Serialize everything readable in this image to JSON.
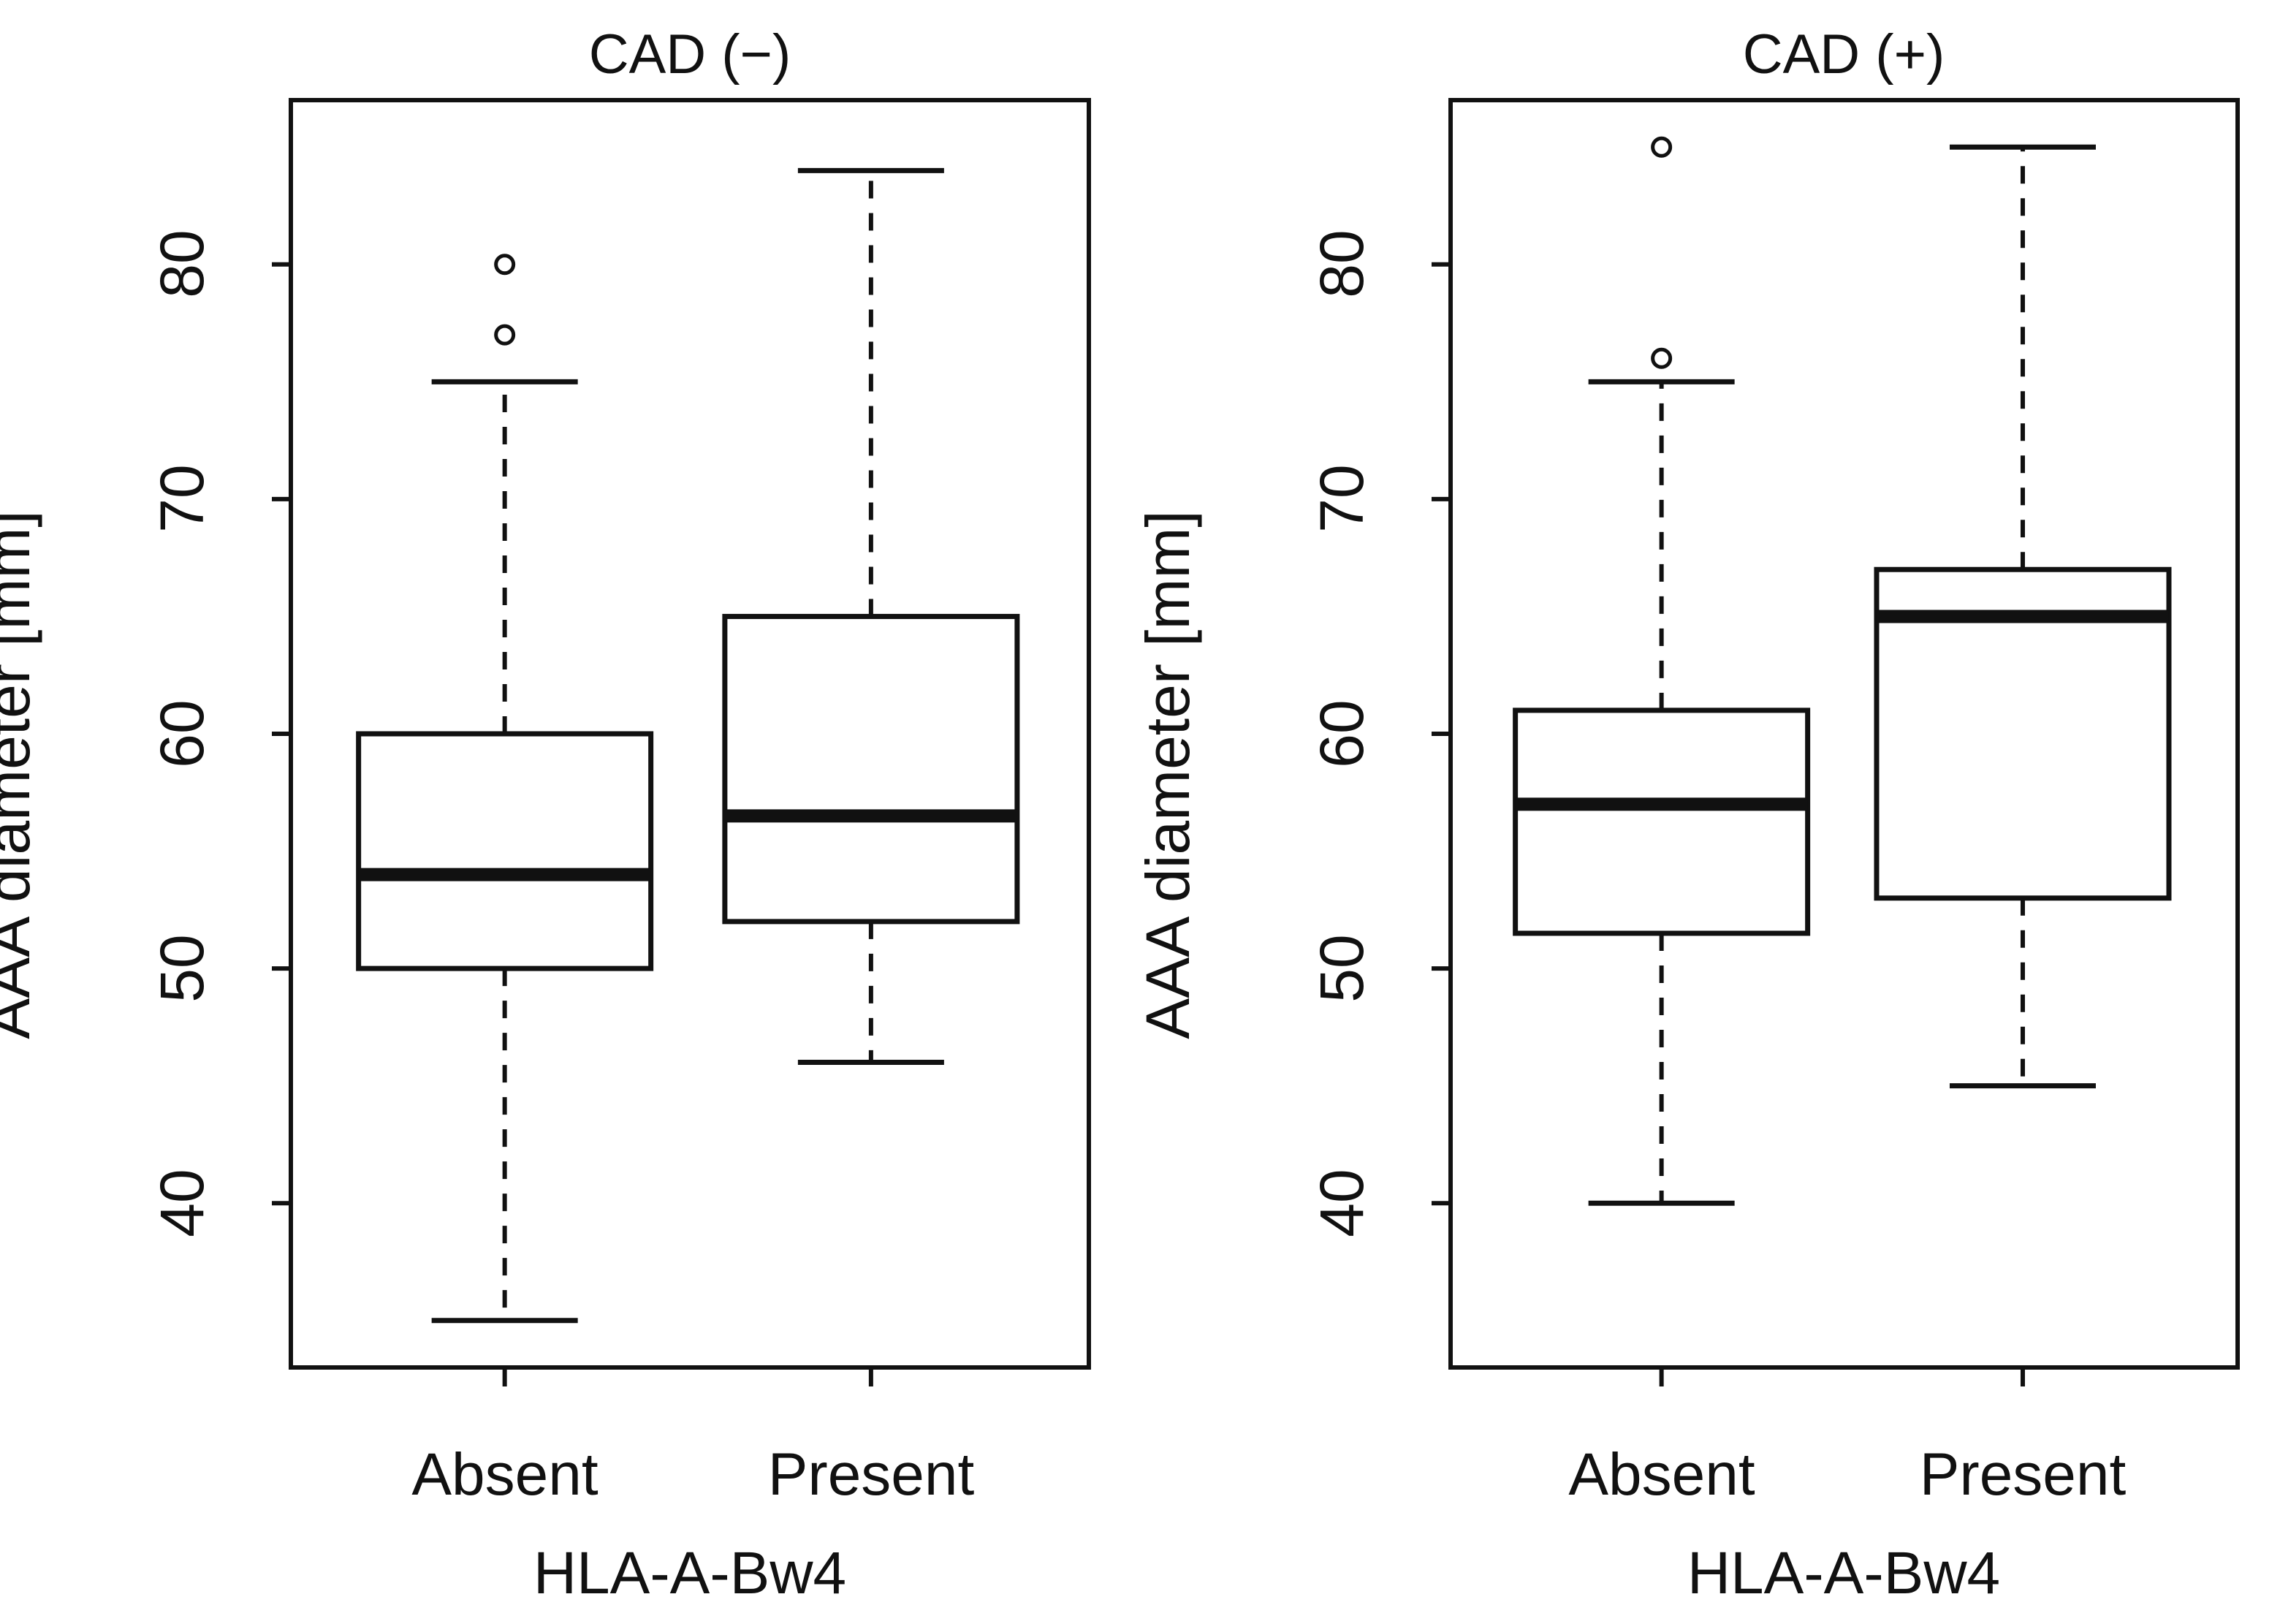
{
  "figure": {
    "description": "Two-panel boxplot figure of AAA diameter by HLA-A-Bw4 status, stratified by CAD status",
    "background_color": "#ffffff",
    "line_color": "#111111"
  },
  "chart_data": [
    {
      "type": "boxplot",
      "title": "CAD (−)",
      "xlabel": "HLA-A-Bw4",
      "ylabel": "AAA diameter [mm]",
      "ylim": [
        33,
        87
      ],
      "yticks": [
        40,
        50,
        60,
        70,
        80
      ],
      "grid": false,
      "legend": null,
      "categories": [
        "Absent",
        "Present"
      ],
      "series": [
        {
          "category": "Absent",
          "whisker_low": 35,
          "q1": 50,
          "median": 54,
          "q3": 60,
          "whisker_high": 75,
          "outliers": [
            77,
            80
          ]
        },
        {
          "category": "Present",
          "whisker_low": 46,
          "q1": 52,
          "median": 56.5,
          "q3": 65,
          "whisker_high": 84,
          "outliers": []
        }
      ]
    },
    {
      "type": "boxplot",
      "title": "CAD (+)",
      "xlabel": "HLA-A-Bw4",
      "ylabel": "AAA diameter [mm]",
      "ylim": [
        33,
        87
      ],
      "yticks": [
        40,
        50,
        60,
        70,
        80
      ],
      "grid": false,
      "legend": null,
      "categories": [
        "Absent",
        "Present"
      ],
      "series": [
        {
          "category": "Absent",
          "whisker_low": 40,
          "q1": 51.5,
          "median": 57,
          "q3": 61,
          "whisker_high": 75,
          "outliers": [
            76,
            85
          ]
        },
        {
          "category": "Present",
          "whisker_low": 45,
          "q1": 53,
          "median": 65,
          "q3": 67,
          "whisker_high": 85,
          "outliers": []
        }
      ]
    }
  ]
}
